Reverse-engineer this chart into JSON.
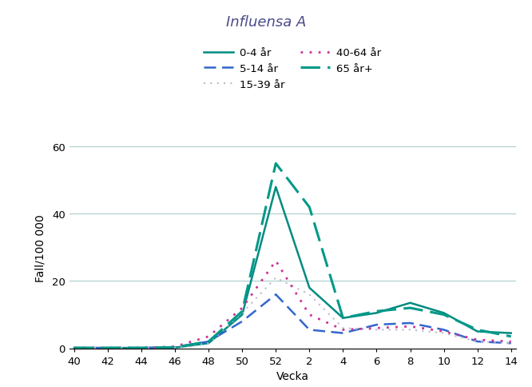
{
  "title": "Influensa A",
  "xlabel": "Vecka",
  "ylabel": "Fall/100 000",
  "x_labels": [
    "40",
    "42",
    "44",
    "46",
    "48",
    "50",
    "52",
    "2",
    "4",
    "6",
    "8",
    "10",
    "12",
    "14"
  ],
  "x_positions": [
    0,
    2,
    4,
    6,
    8,
    10,
    12,
    14,
    16,
    18,
    20,
    22,
    24,
    26
  ],
  "series": {
    "0-4 år": {
      "color": "#008B80",
      "linestyle": "solid",
      "linewidth": 1.8,
      "dashes": null,
      "values": [
        0.1,
        0.1,
        0.1,
        0.2,
        1.5,
        10.0,
        48.0,
        18.0,
        9.0,
        10.5,
        13.5,
        10.5,
        5.0,
        4.5
      ]
    },
    "5-14 år": {
      "color": "#3366CC",
      "linestyle": "dashed",
      "linewidth": 1.8,
      "dashes": [
        6,
        3
      ],
      "values": [
        0.1,
        0.1,
        0.1,
        0.3,
        2.0,
        8.0,
        16.0,
        5.5,
        4.5,
        7.0,
        7.5,
        5.5,
        2.0,
        1.5
      ]
    },
    "15-39 år": {
      "color": "#BBBBCC",
      "linestyle": "dotted",
      "linewidth": 1.5,
      "dashes": [
        1,
        3
      ],
      "values": [
        0.1,
        0.1,
        0.1,
        0.2,
        1.5,
        10.5,
        21.0,
        16.0,
        6.0,
        5.5,
        5.5,
        4.5,
        2.0,
        1.5
      ]
    },
    "40-64 år": {
      "color": "#CC3399",
      "linestyle": "dotted",
      "linewidth": 2.0,
      "dashes": [
        1,
        3
      ],
      "values": [
        0.1,
        0.1,
        0.1,
        0.5,
        3.5,
        12.0,
        26.0,
        10.0,
        5.5,
        6.0,
        6.5,
        5.0,
        2.5,
        2.0
      ]
    },
    "65 år+": {
      "color": "#009988",
      "linestyle": "dashed",
      "linewidth": 2.2,
      "dashes": [
        8,
        3
      ],
      "values": [
        0.1,
        0.1,
        0.1,
        0.3,
        2.0,
        11.0,
        55.0,
        42.0,
        9.0,
        11.0,
        12.0,
        10.0,
        5.5,
        3.5
      ]
    }
  },
  "ylim": [
    0,
    60
  ],
  "yticks": [
    0,
    20,
    40,
    60
  ],
  "title_color": "#4B4B8B",
  "title_fontsize": 13,
  "axis_label_fontsize": 10,
  "tick_fontsize": 9.5,
  "legend_fontsize": 9.5,
  "background_color": "#FFFFFF",
  "grid_color": "#AACCCC"
}
